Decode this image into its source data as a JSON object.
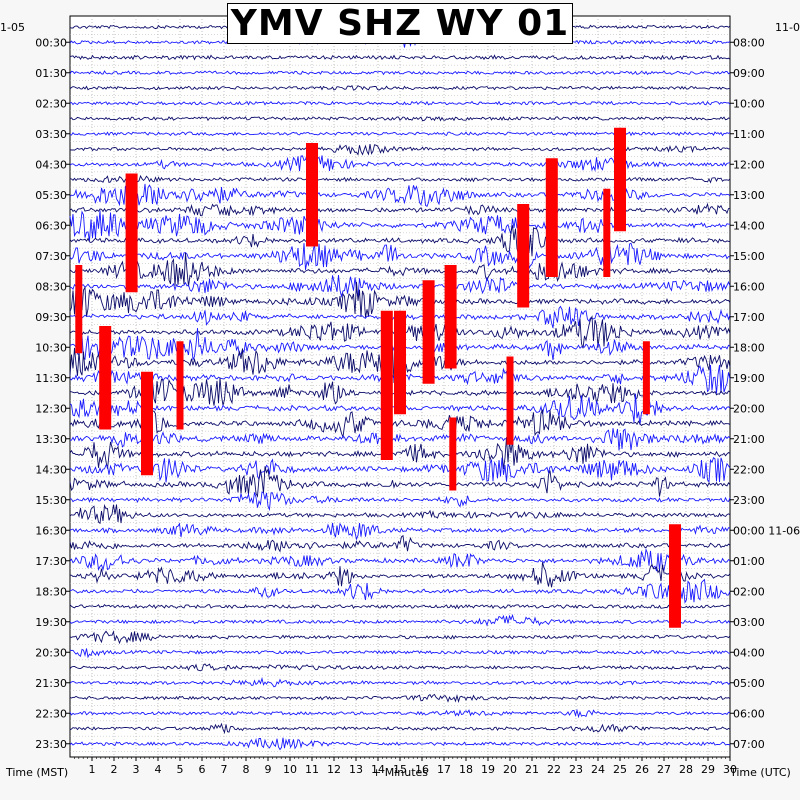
{
  "chart_data": {
    "type": "helicorder",
    "title": "YMV SHZ WY 01",
    "xlabel": "+ Minutes",
    "left_axis_title": "Time (MST)",
    "right_axis_title": "Time (UTC)",
    "left_date_label": "1-05",
    "right_date_label": "11-0",
    "right_date_change_label": "11-06",
    "x_ticks": [
      1,
      2,
      3,
      4,
      5,
      6,
      7,
      8,
      9,
      10,
      11,
      12,
      13,
      14,
      15,
      16,
      17,
      18,
      19,
      20,
      21,
      22,
      23,
      24,
      25,
      26,
      27,
      28,
      29,
      30
    ],
    "xlim": [
      0,
      30
    ],
    "row_minutes": 30,
    "row_count": 48,
    "left_ticks": [
      "00:30",
      "01:30",
      "02:30",
      "03:30",
      "04:30",
      "05:30",
      "06:30",
      "07:30",
      "08:30",
      "09:30",
      "10:30",
      "11:30",
      "12:30",
      "13:30",
      "14:30",
      "15:30",
      "16:30",
      "17:30",
      "18:30",
      "19:30",
      "20:30",
      "21:30",
      "22:30",
      "23:30"
    ],
    "right_ticks": [
      "08:00",
      "09:00",
      "10:00",
      "11:00",
      "12:00",
      "13:00",
      "14:00",
      "15:00",
      "16:00",
      "17:00",
      "18:00",
      "19:00",
      "20:00",
      "21:00",
      "22:00",
      "23:00",
      "00:00 11-06",
      "01:00",
      "02:00",
      "03:00",
      "04:00",
      "05:00",
      "06:00",
      "07:00"
    ],
    "trace_colors": [
      "#0d0d6b",
      "#1a1aff"
    ],
    "clip_color": "#ff0000",
    "grid": "dotted vertical and horizontal",
    "activity_level_by_row": [
      0.3,
      0.35,
      0.5,
      0.3,
      0.3,
      0.3,
      0.3,
      0.35,
      0.3,
      0.55,
      0.4,
      0.7,
      0.8,
      0.85,
      0.9,
      1.0,
      1.0,
      1.0,
      1.0,
      1.0,
      1.0,
      1.0,
      1.0,
      1.0,
      1.0,
      1.0,
      1.0,
      1.0,
      1.0,
      1.0,
      0.9,
      0.6,
      0.6,
      0.7,
      0.7,
      0.8,
      0.75,
      0.6,
      0.45,
      0.4,
      0.4,
      0.35,
      0.4,
      0.35,
      0.3,
      0.3,
      0.3,
      0.3
    ],
    "clipped_events": [
      {
        "minute": 2.8,
        "start_row": 10,
        "end_row": 17
      },
      {
        "minute": 11.0,
        "start_row": 8,
        "end_row": 14
      },
      {
        "minute": 21.9,
        "start_row": 9,
        "end_row": 16
      },
      {
        "minute": 25.0,
        "start_row": 7,
        "end_row": 13
      },
      {
        "minute": 0.4,
        "start_row": 16,
        "end_row": 21
      },
      {
        "minute": 1.6,
        "start_row": 20,
        "end_row": 26
      },
      {
        "minute": 3.5,
        "start_row": 23,
        "end_row": 29
      },
      {
        "minute": 5.0,
        "start_row": 21,
        "end_row": 26
      },
      {
        "minute": 15.0,
        "start_row": 19,
        "end_row": 25
      },
      {
        "minute": 16.3,
        "start_row": 17,
        "end_row": 23
      },
      {
        "minute": 17.3,
        "start_row": 16,
        "end_row": 22
      },
      {
        "minute": 20.0,
        "start_row": 22,
        "end_row": 27
      },
      {
        "minute": 26.2,
        "start_row": 21,
        "end_row": 25
      },
      {
        "minute": 14.4,
        "start_row": 19,
        "end_row": 28
      },
      {
        "minute": 17.4,
        "start_row": 26,
        "end_row": 30
      },
      {
        "minute": 27.5,
        "start_row": 33,
        "end_row": 39
      },
      {
        "minute": 20.6,
        "start_row": 12,
        "end_row": 18
      },
      {
        "minute": 24.4,
        "start_row": 11,
        "end_row": 16
      }
    ]
  }
}
